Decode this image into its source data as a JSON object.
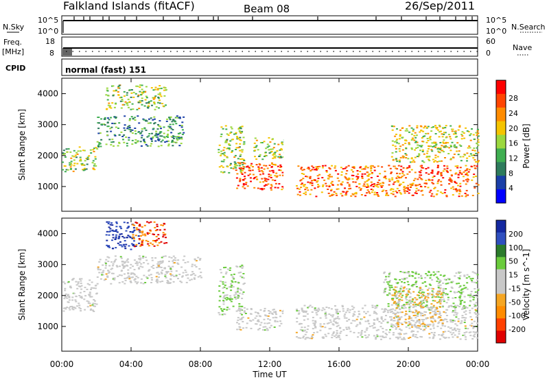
{
  "header": {
    "station": "Falkland Islands (fitACF)",
    "beam": "Beam 08",
    "date": "26/Sep/2011"
  },
  "param_panels": {
    "nsky_label": "N.Sky",
    "nsky_ticks": [
      "10^5",
      "10^0"
    ],
    "nsearch_label": "N.Search",
    "nsearch_ticks": [
      "10^5",
      "10^0"
    ],
    "freq_label": "Freq.",
    "freq_unit": "[MHz]",
    "freq_ticks": [
      "18",
      "8"
    ],
    "nave_label": "Nave",
    "nave_ticks": [
      "60",
      "0"
    ],
    "cpid_label": "CPID",
    "cpid_text": "normal (fast) 151"
  },
  "colors": {
    "power_scale": [
      "#0000ff",
      "#1a3fa8",
      "#2e7b5c",
      "#3fae51",
      "#9bd83f",
      "#f5c400",
      "#ff8c00",
      "#ff4500",
      "#ff0000"
    ],
    "velocity_scale": [
      "#1428a0",
      "#2f4fbf",
      "#2b7b2b",
      "#6acb3c",
      "#c8c8c8",
      "#c8c8c8",
      "#f5a623",
      "#ff8c00",
      "#ff4000",
      "#e00000"
    ]
  },
  "chart_data": [
    {
      "type": "heatmap",
      "panel": "power",
      "ylabel": "Slant Range [km]",
      "yticks": [
        "1000",
        "2000",
        "3000",
        "4000"
      ],
      "ylim": [
        200,
        4500
      ],
      "xlim": [
        0,
        24
      ],
      "colorbar_label": "Power [dB]",
      "colorbar_ticks": [
        "4",
        "8",
        "12",
        "16",
        "20",
        "24",
        "28"
      ],
      "regions": [
        {
          "x": [
            0.0,
            2.0
          ],
          "y": [
            1500,
            2300
          ],
          "value": 16
        },
        {
          "x": [
            2.0,
            7.0
          ],
          "y": [
            2300,
            3300
          ],
          "value": 12
        },
        {
          "x": [
            2.5,
            6.0
          ],
          "y": [
            3500,
            4300
          ],
          "value": 16
        },
        {
          "x": [
            9.0,
            10.5
          ],
          "y": [
            1400,
            3000
          ],
          "value": 16
        },
        {
          "x": [
            10.0,
            12.8
          ],
          "y": [
            900,
            1800
          ],
          "value": 26
        },
        {
          "x": [
            11.0,
            12.8
          ],
          "y": [
            1900,
            2600
          ],
          "value": 16
        },
        {
          "x": [
            13.5,
            24.0
          ],
          "y": [
            700,
            1700
          ],
          "value": 24
        },
        {
          "x": [
            19.0,
            24.0
          ],
          "y": [
            1800,
            3000
          ],
          "value": 18
        }
      ]
    },
    {
      "type": "heatmap",
      "panel": "velocity",
      "ylabel": "Slant Range [km]",
      "yticks": [
        "1000",
        "2000",
        "3000",
        "4000"
      ],
      "ylim": [
        200,
        4500
      ],
      "xlim": [
        0,
        24
      ],
      "xticks": [
        "00:00",
        "04:00",
        "08:00",
        "12:00",
        "16:00",
        "20:00",
        "00:00"
      ],
      "xlabel": "Time UT",
      "colorbar_label": "Velocity [m s^-1]",
      "colorbar_ticks": [
        "200",
        "100",
        "50",
        "15",
        "-15",
        "-50",
        "-100",
        "-200"
      ],
      "regions": [
        {
          "x": [
            0.0,
            2.0
          ],
          "y": [
            1500,
            2600
          ],
          "value": 0
        },
        {
          "x": [
            2.0,
            8.0
          ],
          "y": [
            2400,
            3300
          ],
          "value": 0
        },
        {
          "x": [
            2.5,
            4.5
          ],
          "y": [
            3500,
            4400
          ],
          "value": 150
        },
        {
          "x": [
            4.0,
            6.0
          ],
          "y": [
            3600,
            4400
          ],
          "value": -150
        },
        {
          "x": [
            9.0,
            10.5
          ],
          "y": [
            1400,
            3000
          ],
          "value": 40
        },
        {
          "x": [
            10.0,
            12.8
          ],
          "y": [
            900,
            1600
          ],
          "value": 0
        },
        {
          "x": [
            13.5,
            24.0
          ],
          "y": [
            600,
            1700
          ],
          "value": 0
        },
        {
          "x": [
            18.5,
            24.0
          ],
          "y": [
            1600,
            2800
          ],
          "value": 40
        },
        {
          "x": [
            19.0,
            22.0
          ],
          "y": [
            1000,
            2300
          ],
          "value": -40
        }
      ]
    }
  ]
}
